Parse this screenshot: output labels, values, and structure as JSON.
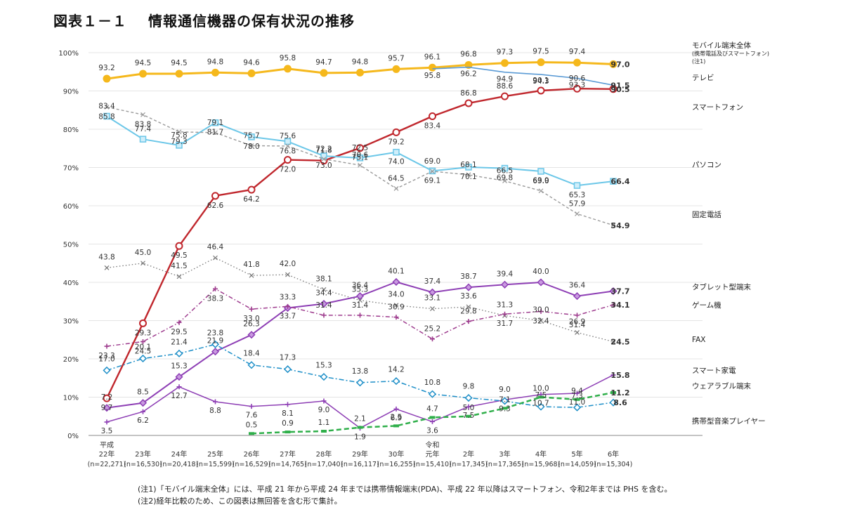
{
  "title": {
    "figure": "図表１－１",
    "text": "情報通信機器の保有状況の推移"
  },
  "colors": {
    "mobile_all": "#F5B81C",
    "tv": "#5B9BD5",
    "smartphone": "#C0272D",
    "pc": "#6CC7E8",
    "fixed_phone": "#9A9A9A",
    "fax": "#777777",
    "tablet": "#8E3FB5",
    "game": "#9E3C8E",
    "sp_speaker": "#8E3FB5",
    "wearable": "#2FAF4A",
    "music_player": "#1E8FC8"
  },
  "notes": [
    "(注1)「モバイル端末全体」には、平成 21 年から平成 24 年までは携帯情報端末(PDA)、平成 22 年以降はスマートフォン、令和2年までは PHS を含む。",
    "(注2)経年比較のため、この図表は無回答を含む形で集計。"
  ],
  "chart_data": {
    "type": "line",
    "title": "情報通信機器の保有状況の推移",
    "ylim": [
      0,
      100
    ],
    "yticks": [
      "0%",
      "10%",
      "20%",
      "30%",
      "40%",
      "50%",
      "60%",
      "70%",
      "80%",
      "90%",
      "100%"
    ],
    "categories": [
      {
        "era": "平成",
        "year": "22年",
        "n": "(n=22,271)"
      },
      {
        "era": "",
        "year": "23年",
        "n": "(n=16,530)"
      },
      {
        "era": "",
        "year": "24年",
        "n": "(n=20,418)"
      },
      {
        "era": "",
        "year": "25年",
        "n": "(n=15,599)"
      },
      {
        "era": "",
        "year": "26年",
        "n": "(n=16,529)"
      },
      {
        "era": "",
        "year": "27年",
        "n": "(n=14,765)"
      },
      {
        "era": "",
        "year": "28年",
        "n": "(n=17,040)"
      },
      {
        "era": "",
        "year": "29年",
        "n": "(n=16,117)"
      },
      {
        "era": "",
        "year": "30年",
        "n": "(n=16,255)"
      },
      {
        "era": "令和",
        "year": "元年",
        "n": "(n=15,410)"
      },
      {
        "era": "",
        "year": "2年",
        "n": "(n=17,345)"
      },
      {
        "era": "",
        "year": "3年",
        "n": "(n=17,365)"
      },
      {
        "era": "",
        "year": "4年",
        "n": "(n=15,968)"
      },
      {
        "era": "",
        "year": "5年",
        "n": "(n=14,059)"
      },
      {
        "era": "",
        "year": "6年",
        "n": "(n=15,304)"
      }
    ],
    "series": [
      {
        "key": "mobile_all",
        "name": "モバイル端末全体",
        "name_sub": "(携帯電話及びスマートフォン)",
        "name_note": "(注1)",
        "values": [
          93.2,
          94.5,
          94.5,
          94.8,
          94.6,
          95.8,
          94.7,
          94.8,
          95.7,
          96.1,
          96.8,
          97.3,
          97.5,
          97.4,
          97.0
        ]
      },
      {
        "key": "tv",
        "name": "テレビ",
        "values": [
          null,
          null,
          null,
          null,
          null,
          null,
          null,
          null,
          null,
          95.8,
          96.2,
          94.9,
          94.3,
          93.3,
          91.5
        ]
      },
      {
        "key": "smartphone",
        "name": "スマートフォン",
        "values": [
          9.7,
          29.3,
          49.5,
          62.6,
          64.2,
          72.0,
          71.8,
          75.1,
          79.2,
          83.4,
          86.8,
          88.6,
          90.1,
          90.6,
          90.5
        ]
      },
      {
        "key": "pc",
        "name": "パソコン",
        "values": [
          83.4,
          77.4,
          75.8,
          81.7,
          78.0,
          76.8,
          73.0,
          72.5,
          74.0,
          69.1,
          70.1,
          69.8,
          69.0,
          65.3,
          66.4
        ]
      },
      {
        "key": "fixed_phone",
        "name": "固定電話",
        "values": [
          85.8,
          83.8,
          79.3,
          79.1,
          75.7,
          75.6,
          72.2,
          70.6,
          64.5,
          69.0,
          68.1,
          66.5,
          63.9,
          57.9,
          54.9
        ]
      },
      {
        "key": "fax",
        "name": "FAX",
        "values": [
          43.8,
          45.0,
          41.5,
          46.4,
          41.8,
          42.0,
          38.1,
          35.3,
          34.0,
          33.1,
          33.6,
          31.3,
          30.0,
          26.9,
          24.5
        ]
      },
      {
        "key": "tablet",
        "name": "タブレット型端末",
        "values": [
          7.2,
          8.5,
          15.3,
          21.9,
          26.3,
          33.3,
          34.4,
          36.4,
          40.1,
          37.4,
          38.7,
          39.4,
          40.0,
          36.4,
          37.7
        ]
      },
      {
        "key": "game",
        "name": "ゲーム機",
        "values": [
          23.3,
          24.5,
          29.5,
          38.3,
          33.0,
          33.7,
          31.4,
          31.4,
          30.9,
          25.2,
          29.8,
          31.7,
          32.4,
          31.4,
          34.1
        ]
      },
      {
        "key": "sp_speaker",
        "name": "スマート家電",
        "values": [
          3.5,
          6.2,
          12.7,
          8.8,
          7.6,
          8.1,
          9.0,
          1.9,
          6.9,
          3.6,
          7.5,
          9.3,
          10.7,
          11.0,
          15.8
        ]
      },
      {
        "key": "wearable",
        "name": "ウェアラブル端末",
        "values": [
          null,
          null,
          null,
          null,
          0.5,
          0.9,
          1.1,
          2.1,
          2.5,
          4.7,
          5.0,
          7.1,
          10.0,
          9.4,
          11.2
        ]
      },
      {
        "key": "music_player",
        "name": "携帯型音楽プレイヤー",
        "values": [
          17.0,
          20.1,
          21.4,
          23.8,
          18.4,
          17.3,
          15.3,
          13.8,
          14.2,
          10.8,
          9.8,
          9.0,
          7.5,
          7.3,
          8.6
        ]
      }
    ]
  }
}
